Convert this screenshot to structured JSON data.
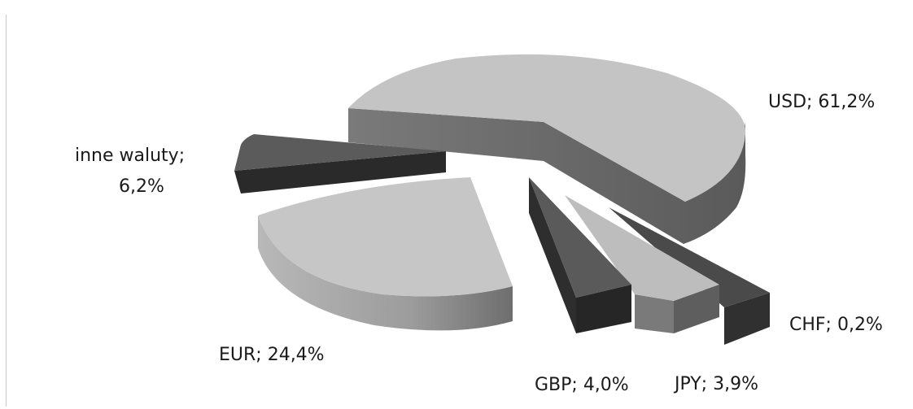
{
  "chart_data": {
    "type": "pie",
    "title": "",
    "legend": "none",
    "exploded": true,
    "three_d": true,
    "slices": [
      {
        "key": "usd",
        "category": "USD",
        "value": 61.2,
        "label": "USD; 61,2%",
        "top_color": "#c4c4c4",
        "side_color": "#6d6d6d"
      },
      {
        "key": "chf",
        "category": "CHF",
        "value": 0.2,
        "label": "CHF; 0,2%",
        "top_color": "#4a4a4a",
        "side_color": "#333333"
      },
      {
        "key": "jpy",
        "category": "JPY",
        "value": 3.9,
        "label": "JPY; 3,9%",
        "top_color": "#bdbdbd",
        "side_color": "#777777"
      },
      {
        "key": "gbp",
        "category": "GBP",
        "value": 4.0,
        "label": "GBP; 4,0%",
        "top_color": "#5a5a5a",
        "side_color": "#2c2c2c"
      },
      {
        "key": "eur",
        "category": "EUR",
        "value": 24.4,
        "label": "EUR; 24,4%",
        "top_color": "#c6c6c6",
        "side_color": "#9a9a9a"
      },
      {
        "key": "inne",
        "category": "inne waluty",
        "value": 6.2,
        "label_lines": [
          "inne waluty;",
          "6,2%"
        ],
        "top_color": "#5b5b5b",
        "side_color": "#2a2a2a"
      }
    ]
  }
}
